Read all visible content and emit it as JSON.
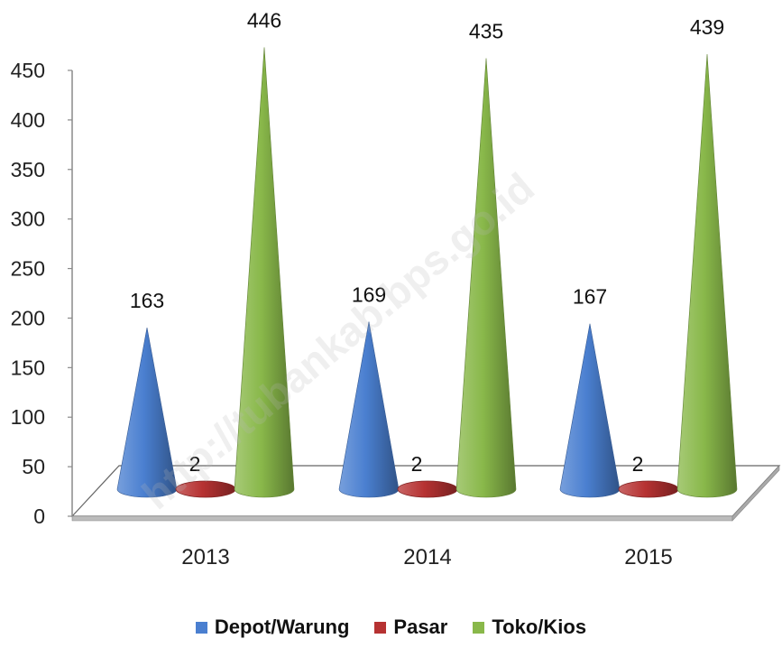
{
  "chart_data": {
    "type": "bar",
    "bar_shape": "cone",
    "three_d": true,
    "categories": [
      "2013",
      "2014",
      "2015"
    ],
    "series": [
      {
        "name": "Depot/Warung",
        "values": [
          163,
          169,
          167
        ],
        "color": "#4a7fd0"
      },
      {
        "name": "Pasar",
        "values": [
          2,
          2,
          2
        ],
        "color": "#b63232"
      },
      {
        "name": "Toko/Kios",
        "values": [
          446,
          435,
          439
        ],
        "color": "#89b84a"
      }
    ],
    "y_ticks": [
      "0",
      "50",
      "100",
      "150",
      "200",
      "250",
      "300",
      "350",
      "400",
      "450"
    ],
    "ylim": [
      0,
      450
    ],
    "grid": false,
    "legend_position": "bottom",
    "watermark": "http://tubankab.bps.go.id"
  }
}
